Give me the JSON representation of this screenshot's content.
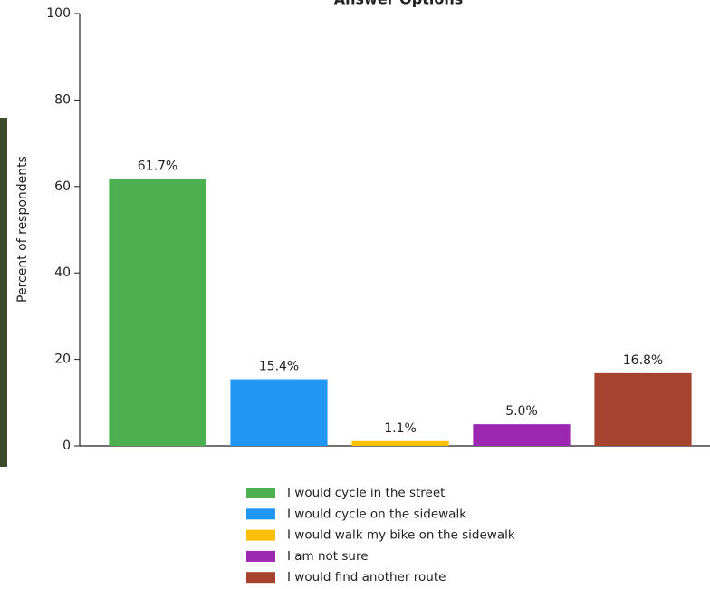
{
  "chart_data": {
    "type": "bar",
    "title": "Answer Options",
    "ylabel": "Percent of respondents",
    "categories": [
      "I would cycle in the street",
      "I would cycle on the sidewalk",
      "I would walk my bike on the sidewalk",
      "I am not sure",
      "I would find another route"
    ],
    "values": [
      61.7,
      15.4,
      1.1,
      5.0,
      16.8
    ],
    "value_labels": [
      "61.7%",
      "15.4%",
      "1.1%",
      "5.0%",
      "16.8%"
    ],
    "colors": [
      "#4caf50",
      "#2196f3",
      "#ffc107",
      "#9c27b0",
      "#a5432f"
    ],
    "ylim": [
      0,
      100
    ],
    "yticks": [
      0,
      20,
      40,
      60,
      80,
      100
    ]
  }
}
